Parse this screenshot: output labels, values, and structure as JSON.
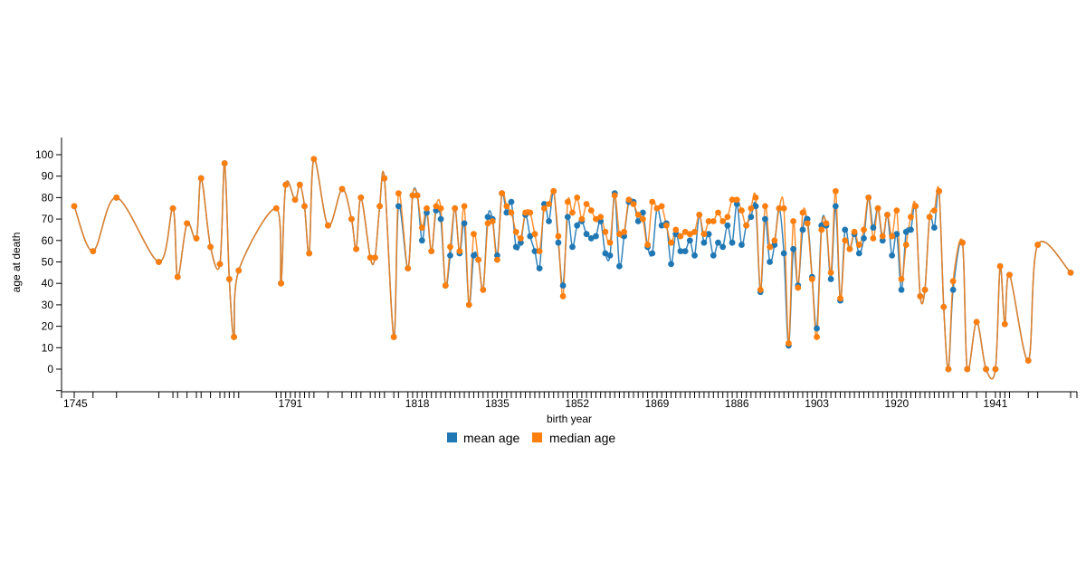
{
  "chart_data": {
    "type": "line",
    "xlabel": "birth year",
    "ylabel": "age at death",
    "xlim": [
      1745,
      1960
    ],
    "ylim": [
      -10,
      105
    ],
    "x_tick_labels": [
      "1745",
      "1791",
      "1818",
      "1835",
      "1852",
      "1869",
      "1886",
      "1903",
      "1920",
      "1941"
    ],
    "y_tick_labels": [
      "0",
      "10",
      "20",
      "30",
      "40",
      "50",
      "60",
      "70",
      "80",
      "90",
      "100"
    ],
    "grid": false,
    "legend_position": "bottom-center",
    "series": [
      {
        "name": "mean age",
        "color": "#1f77b4",
        "points": [
          [
            1745,
            76
          ],
          [
            1749,
            55
          ],
          [
            1754,
            80
          ],
          [
            1763,
            50
          ],
          [
            1766,
            75
          ],
          [
            1767,
            43
          ],
          [
            1769,
            68
          ],
          [
            1771,
            61
          ],
          [
            1772,
            89
          ],
          [
            1774,
            57
          ],
          [
            1776,
            49
          ],
          [
            1777,
            96
          ],
          [
            1778,
            42
          ],
          [
            1779,
            15
          ],
          [
            1780,
            46
          ],
          [
            1788,
            75
          ],
          [
            1789,
            40
          ],
          [
            1790,
            86
          ],
          [
            1792,
            79
          ],
          [
            1793,
            86
          ],
          [
            1794,
            76
          ],
          [
            1795,
            54
          ],
          [
            1796,
            98
          ],
          [
            1799,
            67
          ],
          [
            1802,
            84
          ],
          [
            1804,
            70
          ],
          [
            1805,
            56
          ],
          [
            1806,
            80
          ],
          [
            1808,
            52
          ],
          [
            1809,
            52
          ],
          [
            1810,
            76
          ],
          [
            1811,
            89
          ],
          [
            1813,
            15
          ],
          [
            1814,
            76
          ],
          [
            1816,
            47
          ],
          [
            1817,
            81
          ],
          [
            1818,
            81
          ],
          [
            1819,
            60
          ],
          [
            1820,
            73
          ],
          [
            1821,
            55
          ],
          [
            1822,
            74
          ],
          [
            1823,
            70
          ],
          [
            1824,
            39
          ],
          [
            1825,
            53
          ],
          [
            1826,
            75
          ],
          [
            1827,
            54
          ],
          [
            1828,
            68
          ],
          [
            1829,
            30
          ],
          [
            1830,
            53
          ],
          [
            1831,
            51
          ],
          [
            1832,
            37
          ],
          [
            1833,
            71
          ],
          [
            1834,
            70
          ],
          [
            1835,
            53
          ],
          [
            1836,
            82
          ],
          [
            1837,
            73
          ],
          [
            1838,
            78
          ],
          [
            1839,
            57
          ],
          [
            1840,
            59
          ],
          [
            1841,
            72
          ],
          [
            1842,
            62
          ],
          [
            1843,
            55
          ],
          [
            1844,
            47
          ],
          [
            1845,
            77
          ],
          [
            1846,
            69
          ],
          [
            1847,
            83
          ],
          [
            1848,
            59
          ],
          [
            1849,
            39
          ],
          [
            1850,
            71
          ],
          [
            1851,
            57
          ],
          [
            1852,
            67
          ],
          [
            1853,
            69
          ],
          [
            1854,
            63
          ],
          [
            1855,
            61
          ],
          [
            1856,
            62
          ],
          [
            1857,
            69
          ],
          [
            1858,
            54
          ],
          [
            1859,
            53
          ],
          [
            1860,
            82
          ],
          [
            1861,
            48
          ],
          [
            1862,
            62
          ],
          [
            1863,
            78
          ],
          [
            1864,
            78
          ],
          [
            1865,
            69
          ],
          [
            1866,
            73
          ],
          [
            1867,
            57
          ],
          [
            1868,
            54
          ],
          [
            1869,
            75
          ],
          [
            1870,
            67
          ],
          [
            1871,
            68
          ],
          [
            1872,
            49
          ],
          [
            1873,
            63
          ],
          [
            1874,
            55
          ],
          [
            1875,
            55
          ],
          [
            1876,
            60
          ],
          [
            1877,
            53
          ],
          [
            1878,
            72
          ],
          [
            1879,
            59
          ],
          [
            1880,
            63
          ],
          [
            1881,
            53
          ],
          [
            1882,
            59
          ],
          [
            1883,
            57
          ],
          [
            1884,
            67
          ],
          [
            1885,
            59
          ],
          [
            1886,
            77
          ],
          [
            1887,
            58
          ],
          [
            1888,
            67
          ],
          [
            1889,
            71
          ],
          [
            1890,
            76
          ],
          [
            1891,
            36
          ],
          [
            1892,
            70
          ],
          [
            1893,
            50
          ],
          [
            1894,
            58
          ],
          [
            1895,
            75
          ],
          [
            1896,
            54
          ],
          [
            1897,
            11
          ],
          [
            1898,
            56
          ],
          [
            1899,
            39
          ],
          [
            1900,
            65
          ],
          [
            1901,
            70
          ],
          [
            1902,
            43
          ],
          [
            1903,
            19
          ],
          [
            1904,
            67
          ],
          [
            1905,
            67
          ],
          [
            1906,
            42
          ],
          [
            1907,
            76
          ],
          [
            1908,
            32
          ],
          [
            1909,
            65
          ],
          [
            1910,
            56
          ],
          [
            1911,
            63
          ],
          [
            1912,
            54
          ],
          [
            1913,
            61
          ],
          [
            1914,
            80
          ],
          [
            1915,
            66
          ],
          [
            1916,
            75
          ],
          [
            1917,
            60
          ],
          [
            1918,
            72
          ],
          [
            1919,
            53
          ],
          [
            1920,
            63
          ],
          [
            1921,
            37
          ],
          [
            1922,
            64
          ],
          [
            1923,
            65
          ],
          [
            1924,
            76
          ],
          [
            1925,
            34
          ],
          [
            1926,
            37
          ],
          [
            1927,
            71
          ],
          [
            1928,
            66
          ],
          [
            1929,
            83
          ],
          [
            1930,
            29
          ],
          [
            1931,
            0
          ],
          [
            1932,
            37
          ],
          [
            1934,
            59
          ],
          [
            1935,
            0
          ],
          [
            1937,
            22
          ],
          [
            1939,
            0
          ],
          [
            1941,
            0
          ],
          [
            1942,
            48
          ],
          [
            1943,
            21
          ],
          [
            1944,
            44
          ],
          [
            1948,
            4
          ],
          [
            1950,
            58
          ],
          [
            1957,
            45
          ]
        ]
      },
      {
        "name": "median age",
        "color": "#ff7f0e",
        "points": [
          [
            1745,
            76
          ],
          [
            1749,
            55
          ],
          [
            1754,
            80
          ],
          [
            1763,
            50
          ],
          [
            1766,
            75
          ],
          [
            1767,
            43
          ],
          [
            1769,
            68
          ],
          [
            1771,
            61
          ],
          [
            1772,
            89
          ],
          [
            1774,
            57
          ],
          [
            1776,
            49
          ],
          [
            1777,
            96
          ],
          [
            1778,
            42
          ],
          [
            1779,
            15
          ],
          [
            1780,
            46
          ],
          [
            1788,
            75
          ],
          [
            1789,
            40
          ],
          [
            1790,
            86
          ],
          [
            1792,
            79
          ],
          [
            1793,
            86
          ],
          [
            1794,
            76
          ],
          [
            1795,
            54
          ],
          [
            1796,
            98
          ],
          [
            1799,
            67
          ],
          [
            1802,
            84
          ],
          [
            1804,
            70
          ],
          [
            1805,
            56
          ],
          [
            1806,
            80
          ],
          [
            1808,
            52
          ],
          [
            1809,
            52
          ],
          [
            1810,
            76
          ],
          [
            1811,
            89
          ],
          [
            1813,
            15
          ],
          [
            1814,
            82
          ],
          [
            1816,
            47
          ],
          [
            1817,
            81
          ],
          [
            1818,
            81
          ],
          [
            1819,
            66
          ],
          [
            1820,
            75
          ],
          [
            1821,
            55
          ],
          [
            1822,
            76
          ],
          [
            1823,
            75
          ],
          [
            1824,
            39
          ],
          [
            1825,
            57
          ],
          [
            1826,
            75
          ],
          [
            1827,
            55
          ],
          [
            1828,
            76
          ],
          [
            1829,
            30
          ],
          [
            1830,
            63
          ],
          [
            1831,
            51
          ],
          [
            1832,
            37
          ],
          [
            1833,
            68
          ],
          [
            1834,
            69
          ],
          [
            1835,
            51
          ],
          [
            1836,
            82
          ],
          [
            1837,
            76
          ],
          [
            1838,
            73
          ],
          [
            1839,
            64
          ],
          [
            1840,
            61
          ],
          [
            1841,
            73
          ],
          [
            1842,
            73
          ],
          [
            1843,
            63
          ],
          [
            1844,
            55
          ],
          [
            1845,
            75
          ],
          [
            1846,
            77
          ],
          [
            1847,
            83
          ],
          [
            1848,
            62
          ],
          [
            1849,
            34
          ],
          [
            1850,
            78
          ],
          [
            1851,
            73
          ],
          [
            1852,
            80
          ],
          [
            1853,
            70
          ],
          [
            1854,
            77
          ],
          [
            1855,
            74
          ],
          [
            1856,
            70
          ],
          [
            1857,
            71
          ],
          [
            1858,
            64
          ],
          [
            1859,
            59
          ],
          [
            1860,
            81
          ],
          [
            1861,
            63
          ],
          [
            1862,
            64
          ],
          [
            1863,
            79
          ],
          [
            1864,
            77
          ],
          [
            1865,
            72
          ],
          [
            1866,
            70
          ],
          [
            1867,
            58
          ],
          [
            1868,
            78
          ],
          [
            1869,
            75
          ],
          [
            1870,
            76
          ],
          [
            1871,
            67
          ],
          [
            1872,
            59
          ],
          [
            1873,
            65
          ],
          [
            1874,
            62
          ],
          [
            1875,
            64
          ],
          [
            1876,
            63
          ],
          [
            1877,
            64
          ],
          [
            1878,
            72
          ],
          [
            1879,
            63
          ],
          [
            1880,
            69
          ],
          [
            1881,
            69
          ],
          [
            1882,
            73
          ],
          [
            1883,
            69
          ],
          [
            1884,
            71
          ],
          [
            1885,
            79
          ],
          [
            1886,
            79
          ],
          [
            1887,
            74
          ],
          [
            1888,
            67
          ],
          [
            1889,
            75
          ],
          [
            1890,
            80
          ],
          [
            1891,
            37
          ],
          [
            1892,
            76
          ],
          [
            1893,
            57
          ],
          [
            1894,
            60
          ],
          [
            1895,
            75
          ],
          [
            1896,
            75
          ],
          [
            1897,
            12
          ],
          [
            1898,
            69
          ],
          [
            1899,
            38
          ],
          [
            1900,
            73
          ],
          [
            1901,
            68
          ],
          [
            1902,
            42
          ],
          [
            1903,
            15
          ],
          [
            1904,
            65
          ],
          [
            1905,
            68
          ],
          [
            1906,
            45
          ],
          [
            1907,
            83
          ],
          [
            1908,
            33
          ],
          [
            1909,
            60
          ],
          [
            1910,
            56
          ],
          [
            1911,
            64
          ],
          [
            1912,
            58
          ],
          [
            1913,
            65
          ],
          [
            1914,
            80
          ],
          [
            1915,
            61
          ],
          [
            1916,
            75
          ],
          [
            1917,
            62
          ],
          [
            1918,
            72
          ],
          [
            1919,
            62
          ],
          [
            1920,
            74
          ],
          [
            1921,
            42
          ],
          [
            1922,
            58
          ],
          [
            1923,
            71
          ],
          [
            1924,
            76
          ],
          [
            1925,
            34
          ],
          [
            1926,
            37
          ],
          [
            1927,
            71
          ],
          [
            1928,
            74
          ],
          [
            1929,
            83
          ],
          [
            1930,
            29
          ],
          [
            1931,
            0
          ],
          [
            1932,
            41
          ],
          [
            1934,
            59
          ],
          [
            1935,
            0
          ],
          [
            1937,
            22
          ],
          [
            1939,
            0
          ],
          [
            1941,
            0
          ],
          [
            1942,
            48
          ],
          [
            1943,
            21
          ],
          [
            1944,
            44
          ],
          [
            1948,
            4
          ],
          [
            1950,
            58
          ],
          [
            1957,
            45
          ]
        ]
      }
    ]
  }
}
